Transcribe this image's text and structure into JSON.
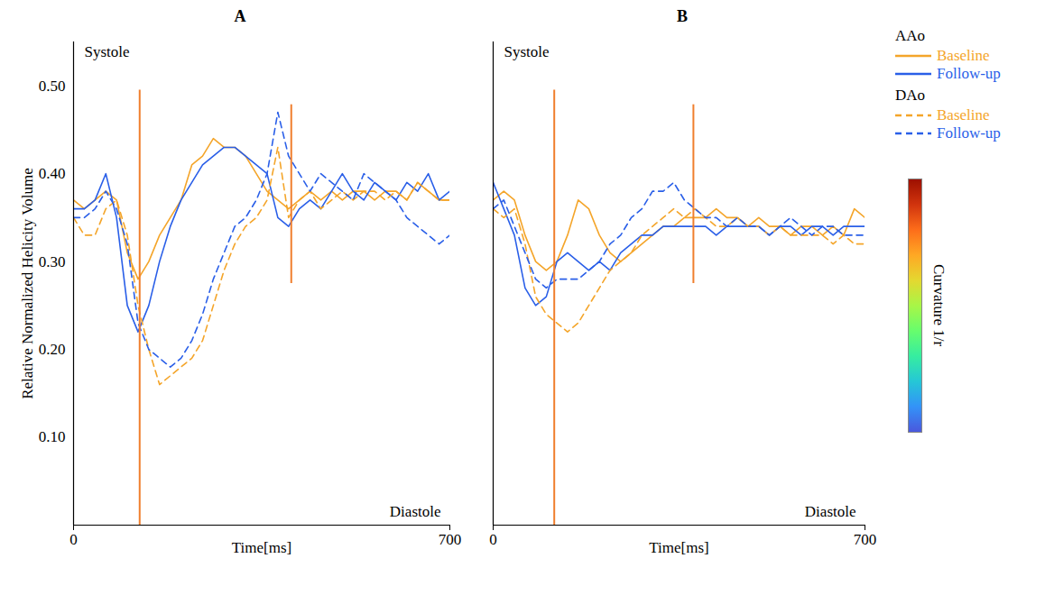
{
  "chart_data": [
    {
      "type": "line",
      "title": "A",
      "ylabel": "Relative Normalized Helicity Volume",
      "xlabel": "Time[ms]",
      "x": [
        0,
        20,
        40,
        60,
        80,
        100,
        120,
        140,
        160,
        180,
        200,
        220,
        240,
        260,
        280,
        300,
        320,
        340,
        360,
        380,
        400,
        420,
        440,
        460,
        480,
        500,
        520,
        540,
        560,
        580,
        600,
        620,
        640,
        660,
        680,
        700
      ],
      "xlim": [
        0,
        700
      ],
      "xticks": [
        0,
        700
      ],
      "ylim": [
        0,
        0.55
      ],
      "yticks": [
        0.1,
        0.2,
        0.3,
        0.4,
        0.5
      ],
      "annotations": [
        {
          "text": "Systole",
          "x": 123
        },
        {
          "text": "Diastole",
          "x": 405
        }
      ],
      "series": [
        {
          "name": "Baseline",
          "group": "AAo",
          "color": "#f4a52a",
          "line_style": "solid",
          "values": [
            0.37,
            0.36,
            0.37,
            0.38,
            0.37,
            0.31,
            0.28,
            0.3,
            0.33,
            0.35,
            0.37,
            0.41,
            0.42,
            0.44,
            0.43,
            0.43,
            0.42,
            0.4,
            0.38,
            0.37,
            0.36,
            0.37,
            0.38,
            0.37,
            0.38,
            0.37,
            0.38,
            0.38,
            0.37,
            0.38,
            0.38,
            0.37,
            0.39,
            0.38,
            0.37,
            0.37
          ]
        },
        {
          "name": "Follow-up",
          "group": "AAo",
          "color": "#2a5fe8",
          "line_style": "solid",
          "values": [
            0.36,
            0.36,
            0.37,
            0.4,
            0.35,
            0.25,
            0.22,
            0.25,
            0.3,
            0.34,
            0.37,
            0.39,
            0.41,
            0.42,
            0.43,
            0.43,
            0.42,
            0.41,
            0.4,
            0.35,
            0.34,
            0.36,
            0.37,
            0.36,
            0.38,
            0.4,
            0.38,
            0.37,
            0.39,
            0.38,
            0.37,
            0.39,
            0.38,
            0.4,
            0.37,
            0.38
          ]
        },
        {
          "name": "Baseline",
          "group": "DAo",
          "color": "#f4a52a",
          "line_style": "dashed",
          "values": [
            0.35,
            0.33,
            0.33,
            0.36,
            0.37,
            0.33,
            0.25,
            0.2,
            0.16,
            0.17,
            0.18,
            0.19,
            0.21,
            0.25,
            0.29,
            0.32,
            0.34,
            0.35,
            0.37,
            0.43,
            0.35,
            0.37,
            0.38,
            0.36,
            0.37,
            0.38,
            0.37,
            0.38,
            0.38,
            0.37,
            0.38,
            0.37,
            0.39,
            0.38,
            0.37,
            0.37
          ]
        },
        {
          "name": "Follow-up",
          "group": "DAo",
          "color": "#2a5fe8",
          "line_style": "dashed",
          "values": [
            0.35,
            0.35,
            0.36,
            0.38,
            0.36,
            0.32,
            0.23,
            0.2,
            0.19,
            0.18,
            0.19,
            0.21,
            0.24,
            0.28,
            0.31,
            0.34,
            0.35,
            0.37,
            0.4,
            0.47,
            0.42,
            0.4,
            0.38,
            0.4,
            0.39,
            0.38,
            0.37,
            0.4,
            0.39,
            0.38,
            0.37,
            0.35,
            0.34,
            0.33,
            0.32,
            0.33
          ]
        }
      ]
    },
    {
      "type": "line",
      "title": "B",
      "xlabel": "Time[ms]",
      "tick_labels": "x",
      "legend": "right",
      "x": [
        0,
        20,
        40,
        60,
        80,
        100,
        120,
        140,
        160,
        180,
        200,
        220,
        240,
        260,
        280,
        300,
        320,
        340,
        360,
        380,
        400,
        420,
        440,
        460,
        480,
        500,
        520,
        540,
        560,
        580,
        600,
        620,
        640,
        660,
        680,
        700
      ],
      "xlim": [
        0,
        700
      ],
      "xticks": [
        0,
        700
      ],
      "ylim": [
        0,
        0.55
      ],
      "annotations": [
        {
          "text": "Systole",
          "x": 115
        },
        {
          "text": "Diastole",
          "x": 377
        }
      ],
      "colorbar": {
        "label": "Curvature",
        "unit": "1/r"
      },
      "series": [
        {
          "name": "Baseline",
          "group": "AAo",
          "color": "#f4a52a",
          "line_style": "solid",
          "values": [
            0.37,
            0.38,
            0.37,
            0.33,
            0.3,
            0.29,
            0.3,
            0.33,
            0.37,
            0.36,
            0.33,
            0.31,
            0.3,
            0.31,
            0.32,
            0.33,
            0.34,
            0.34,
            0.35,
            0.35,
            0.35,
            0.36,
            0.35,
            0.35,
            0.34,
            0.35,
            0.34,
            0.34,
            0.33,
            0.34,
            0.34,
            0.33,
            0.34,
            0.33,
            0.36,
            0.35
          ]
        },
        {
          "name": "Follow-up",
          "group": "AAo",
          "color": "#2a5fe8",
          "line_style": "solid",
          "values": [
            0.39,
            0.36,
            0.33,
            0.27,
            0.25,
            0.26,
            0.3,
            0.31,
            0.3,
            0.29,
            0.3,
            0.29,
            0.31,
            0.32,
            0.33,
            0.33,
            0.34,
            0.34,
            0.34,
            0.34,
            0.34,
            0.33,
            0.34,
            0.34,
            0.34,
            0.34,
            0.33,
            0.34,
            0.34,
            0.33,
            0.34,
            0.34,
            0.33,
            0.34,
            0.34,
            0.34
          ]
        },
        {
          "name": "Baseline",
          "group": "DAo",
          "color": "#f4a52a",
          "line_style": "dashed",
          "values": [
            0.36,
            0.35,
            0.36,
            0.32,
            0.26,
            0.24,
            0.23,
            0.22,
            0.23,
            0.25,
            0.27,
            0.29,
            0.3,
            0.31,
            0.33,
            0.34,
            0.35,
            0.36,
            0.35,
            0.36,
            0.35,
            0.34,
            0.34,
            0.35,
            0.34,
            0.34,
            0.33,
            0.34,
            0.33,
            0.33,
            0.33,
            0.33,
            0.32,
            0.33,
            0.32,
            0.32
          ]
        },
        {
          "name": "Follow-up",
          "group": "DAo",
          "color": "#2a5fe8",
          "line_style": "dashed",
          "values": [
            0.36,
            0.37,
            0.34,
            0.31,
            0.28,
            0.27,
            0.28,
            0.28,
            0.28,
            0.29,
            0.3,
            0.32,
            0.33,
            0.35,
            0.36,
            0.38,
            0.38,
            0.39,
            0.37,
            0.36,
            0.35,
            0.35,
            0.34,
            0.35,
            0.34,
            0.34,
            0.33,
            0.34,
            0.35,
            0.34,
            0.33,
            0.34,
            0.34,
            0.33,
            0.33,
            0.33
          ]
        }
      ]
    }
  ]
}
